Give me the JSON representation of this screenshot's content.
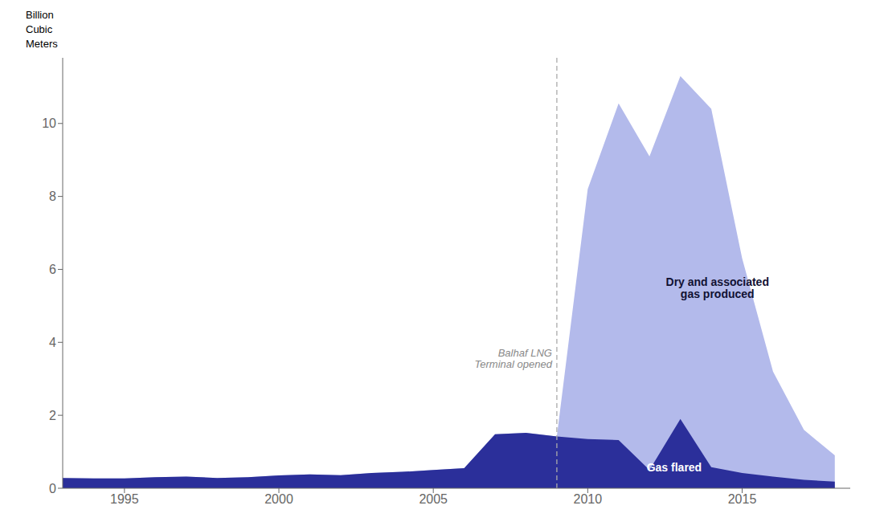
{
  "chart_data": {
    "type": "area",
    "x": [
      1993,
      1994,
      1995,
      1996,
      1997,
      1998,
      1999,
      2000,
      2001,
      2002,
      2003,
      2004,
      2005,
      2006,
      2007,
      2008,
      2009,
      2010,
      2011,
      2012,
      2013,
      2014,
      2015,
      2016,
      2017,
      2018
    ],
    "series": [
      {
        "name": "Dry and associated\ngas produced",
        "color": "#B3BAEB",
        "values": [
          0.28,
          0.27,
          0.27,
          0.3,
          0.32,
          0.28,
          0.3,
          0.35,
          0.38,
          0.36,
          0.42,
          0.45,
          0.5,
          0.55,
          1.48,
          1.52,
          1.42,
          8.2,
          10.55,
          9.1,
          11.3,
          10.4,
          6.3,
          3.2,
          1.6,
          0.9
        ]
      },
      {
        "name": "Gas flared",
        "color": "#2B2F9A",
        "values": [
          0.28,
          0.27,
          0.27,
          0.3,
          0.32,
          0.28,
          0.3,
          0.35,
          0.38,
          0.36,
          0.42,
          0.45,
          0.5,
          0.55,
          1.48,
          1.52,
          1.42,
          1.35,
          1.32,
          0.5,
          1.9,
          0.58,
          0.42,
          0.32,
          0.23,
          0.18
        ]
      }
    ],
    "ylabel": "Billion\nCubic\nMeters",
    "annotations": [
      {
        "text": "Balhaf LNG\nTerminal opened",
        "x": 2009.0,
        "line_style": "dashed"
      }
    ],
    "xlim": [
      1993,
      2018.5
    ],
    "ylim": [
      0,
      11.8
    ],
    "xticks": [
      1995,
      2000,
      2005,
      2010,
      2015
    ],
    "yticks": [
      0,
      2,
      4,
      6,
      8,
      10
    ],
    "grid": false
  }
}
